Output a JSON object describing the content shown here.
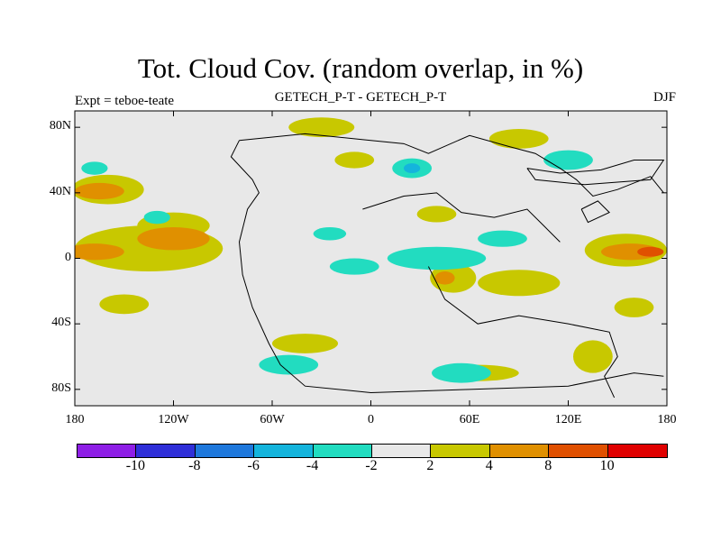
{
  "title": "Tot. Cloud Cov. (random overlap, in %)",
  "subtitle_left": "Expt = teboe-teate",
  "subtitle_center": "GETECH_P-T - GETECH_P-T",
  "subtitle_right": "DJF",
  "y_ticks": [
    {
      "label": "80N",
      "lat": 80
    },
    {
      "label": "40N",
      "lat": 40
    },
    {
      "label": "0",
      "lat": 0
    },
    {
      "label": "40S",
      "lat": -40
    },
    {
      "label": "80S",
      "lat": -80
    }
  ],
  "x_ticks": [
    {
      "label": "180",
      "lon": -180
    },
    {
      "label": "120W",
      "lon": -120
    },
    {
      "label": "60W",
      "lon": -60
    },
    {
      "label": "0",
      "lon": 0
    },
    {
      "label": "60E",
      "lon": 60
    },
    {
      "label": "120E",
      "lon": 120
    },
    {
      "label": "180",
      "lon": 180
    }
  ],
  "colorbar": {
    "colors": [
      "#8e1ee6",
      "#2f2fd8",
      "#1e78dc",
      "#14b4dc",
      "#22dcc0",
      "#e8e8e8",
      "#c8c800",
      "#e09000",
      "#e05000",
      "#e00000"
    ],
    "labels": [
      "-10",
      "-8",
      "-6",
      "-4",
      "-2",
      "2",
      "4",
      "8",
      "10"
    ]
  },
  "colors": {
    "neutral": "#e8e8e8",
    "yellow": "#c8c800",
    "orange": "#e09000",
    "red_orange": "#e05000",
    "cyan": "#22dcc0",
    "teal": "#14b4dc",
    "coast": "#000000"
  },
  "map_data": {
    "lon_range": [
      -180,
      180
    ],
    "lat_range": [
      -90,
      90
    ],
    "anomaly_regions": [
      {
        "level": "orange",
        "lon": -168,
        "lat": 4,
        "rlon": 18,
        "rlat": 5
      },
      {
        "level": "orange",
        "lon": -120,
        "lat": 12,
        "rlon": 22,
        "rlat": 7
      },
      {
        "level": "orange",
        "lon": -165,
        "lat": 41,
        "rlon": 15,
        "rlat": 5
      },
      {
        "level": "orange",
        "lon": 158,
        "lat": 4,
        "rlon": 18,
        "rlat": 5
      },
      {
        "level": "orange",
        "lon": 45,
        "lat": -12,
        "rlon": 6,
        "rlat": 4
      },
      {
        "level": "yellow",
        "lon": -135,
        "lat": 6,
        "rlon": 45,
        "rlat": 14
      },
      {
        "level": "yellow",
        "lon": -160,
        "lat": 42,
        "rlon": 22,
        "rlat": 9
      },
      {
        "level": "yellow",
        "lon": 155,
        "lat": 5,
        "rlon": 25,
        "rlat": 10
      },
      {
        "level": "yellow",
        "lon": 50,
        "lat": -12,
        "rlon": 14,
        "rlat": 9
      },
      {
        "level": "yellow",
        "lon": 90,
        "lat": -15,
        "rlon": 25,
        "rlat": 8
      },
      {
        "level": "yellow",
        "lon": -150,
        "lat": -28,
        "rlon": 15,
        "rlat": 6
      },
      {
        "level": "yellow",
        "lon": -120,
        "lat": 20,
        "rlon": 22,
        "rlat": 8
      },
      {
        "level": "yellow",
        "lon": -30,
        "lat": 80,
        "rlon": 20,
        "rlat": 6
      },
      {
        "level": "yellow",
        "lon": 90,
        "lat": 73,
        "rlon": 18,
        "rlat": 6
      },
      {
        "level": "yellow",
        "lon": 160,
        "lat": -30,
        "rlon": 12,
        "rlat": 6
      },
      {
        "level": "yellow",
        "lon": -40,
        "lat": -52,
        "rlon": 20,
        "rlat": 6
      },
      {
        "level": "yellow",
        "lon": 65,
        "lat": -70,
        "rlon": 25,
        "rlat": 5
      },
      {
        "level": "yellow",
        "lon": 135,
        "lat": -60,
        "rlon": 12,
        "rlat": 10
      },
      {
        "level": "yellow",
        "lon": 40,
        "lat": 27,
        "rlon": 12,
        "rlat": 5
      },
      {
        "level": "yellow",
        "lon": -10,
        "lat": 60,
        "rlon": 12,
        "rlat": 5
      },
      {
        "level": "cyan",
        "lon": 40,
        "lat": 0,
        "rlon": 30,
        "rlat": 7
      },
      {
        "level": "cyan",
        "lon": 80,
        "lat": 12,
        "rlon": 15,
        "rlat": 5
      },
      {
        "level": "cyan",
        "lon": -50,
        "lat": -65,
        "rlon": 18,
        "rlat": 6
      },
      {
        "level": "cyan",
        "lon": 55,
        "lat": -70,
        "rlon": 18,
        "rlat": 6
      },
      {
        "level": "cyan",
        "lon": 120,
        "lat": 60,
        "rlon": 15,
        "rlat": 6
      },
      {
        "level": "cyan",
        "lon": -10,
        "lat": -5,
        "rlon": 15,
        "rlat": 5
      },
      {
        "level": "cyan",
        "lon": -25,
        "lat": 15,
        "rlon": 10,
        "rlat": 4
      },
      {
        "level": "cyan",
        "lon": 25,
        "lat": 55,
        "rlon": 12,
        "rlat": 6
      },
      {
        "level": "cyan",
        "lon": -130,
        "lat": 25,
        "rlon": 8,
        "rlat": 4
      },
      {
        "level": "cyan",
        "lon": -168,
        "lat": 55,
        "rlon": 8,
        "rlat": 4
      },
      {
        "level": "teal",
        "lon": 25,
        "lat": 55,
        "rlon": 5,
        "rlat": 3
      },
      {
        "level": "red_orange",
        "lon": 170,
        "lat": 4,
        "rlon": 8,
        "rlat": 3
      }
    ],
    "coastlines": [
      [
        [
          -80,
          72
        ],
        [
          -40,
          76
        ],
        [
          0,
          72
        ],
        [
          20,
          70
        ],
        [
          35,
          64
        ],
        [
          60,
          75
        ],
        [
          85,
          68
        ],
        [
          100,
          64
        ],
        [
          115,
          55
        ],
        [
          125,
          48
        ],
        [
          135,
          38
        ],
        [
          150,
          42
        ],
        [
          170,
          50
        ],
        [
          178,
          40
        ]
      ],
      [
        [
          -80,
          72
        ],
        [
          -85,
          62
        ],
        [
          -72,
          48
        ],
        [
          -68,
          40
        ],
        [
          -75,
          30
        ],
        [
          -80,
          10
        ],
        [
          -78,
          -10
        ],
        [
          -72,
          -30
        ],
        [
          -62,
          -52
        ],
        [
          -55,
          -65
        ],
        [
          -40,
          -78
        ],
        [
          0,
          -82
        ],
        [
          60,
          -80
        ],
        [
          120,
          -78
        ],
        [
          160,
          -70
        ],
        [
          178,
          -72
        ]
      ],
      [
        [
          -5,
          30
        ],
        [
          20,
          38
        ],
        [
          40,
          40
        ],
        [
          55,
          28
        ],
        [
          75,
          25
        ],
        [
          95,
          30
        ],
        [
          105,
          20
        ],
        [
          115,
          10
        ]
      ],
      [
        [
          35,
          -5
        ],
        [
          45,
          -25
        ],
        [
          65,
          -40
        ],
        [
          90,
          -35
        ],
        [
          120,
          -40
        ],
        [
          145,
          -45
        ],
        [
          150,
          -60
        ],
        [
          142,
          -72
        ],
        [
          148,
          -85
        ]
      ],
      [
        [
          95,
          55
        ],
        [
          115,
          52
        ],
        [
          140,
          54
        ],
        [
          160,
          60
        ],
        [
          178,
          60
        ],
        [
          170,
          48
        ],
        [
          130,
          45
        ],
        [
          100,
          48
        ],
        [
          95,
          55
        ]
      ],
      [
        [
          128,
          30
        ],
        [
          138,
          35
        ],
        [
          145,
          28
        ],
        [
          132,
          22
        ],
        [
          128,
          30
        ]
      ]
    ]
  }
}
